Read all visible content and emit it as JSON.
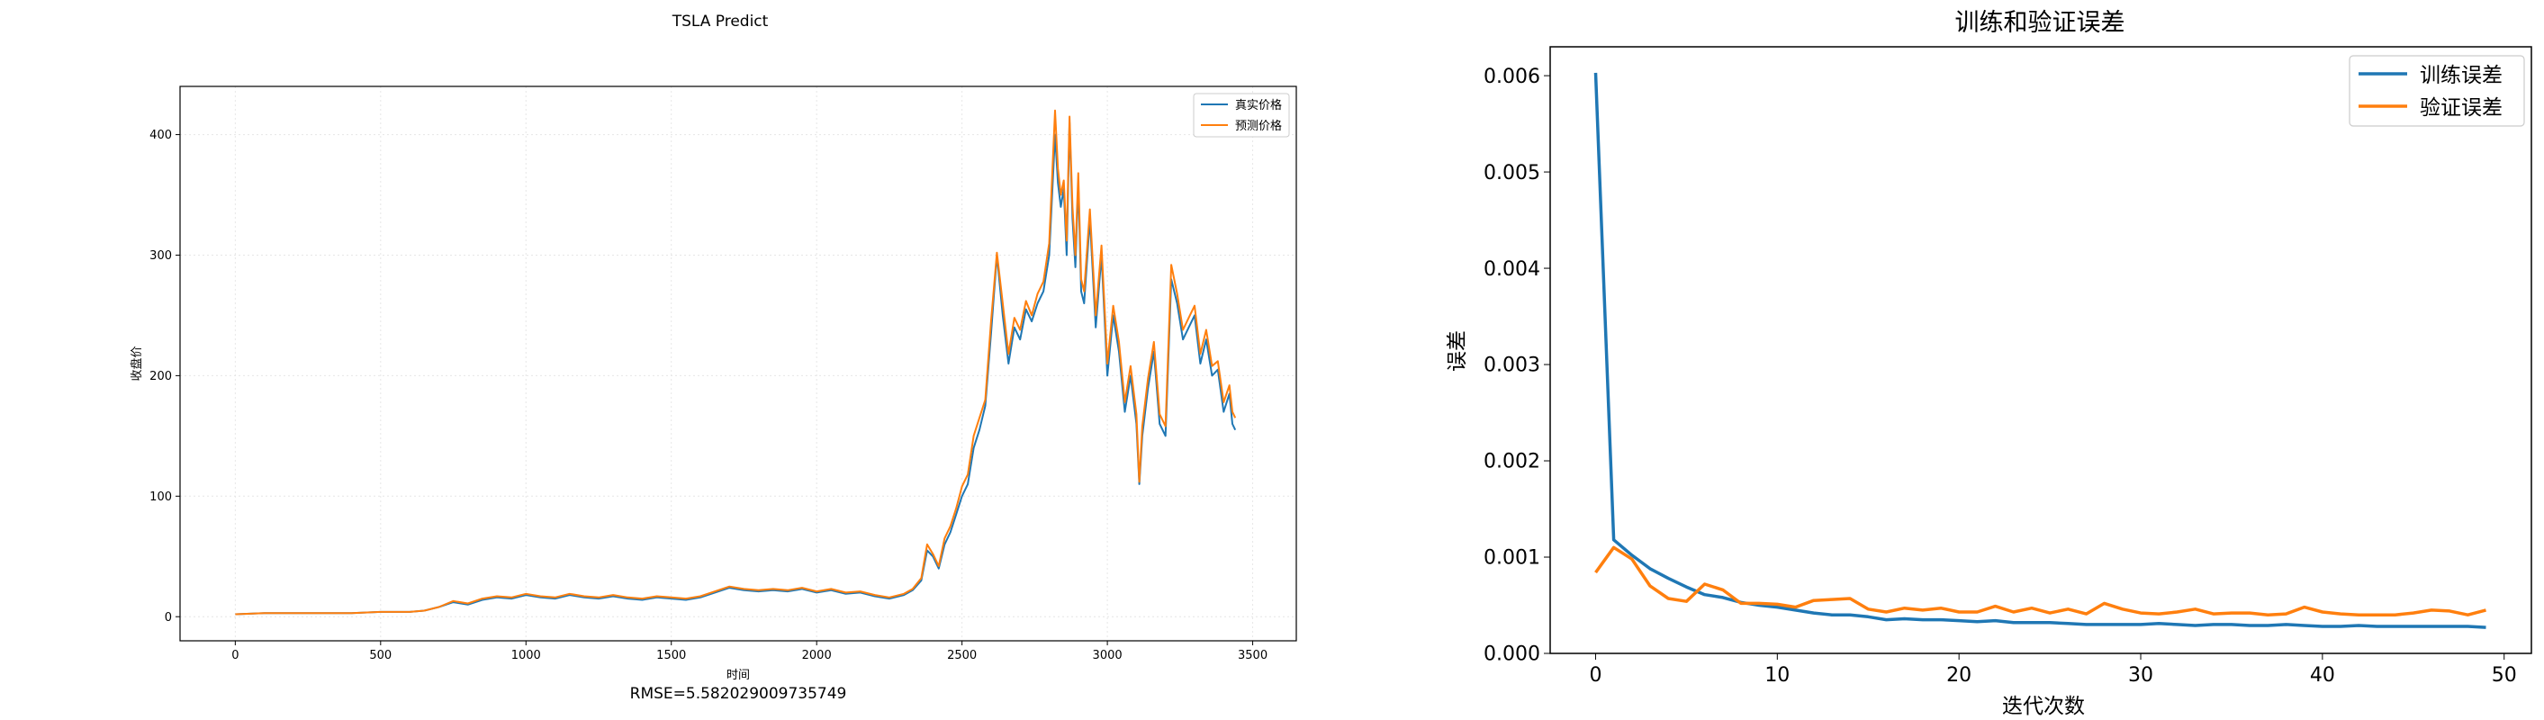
{
  "chart_data": [
    {
      "type": "line",
      "title": "TSLA Predict",
      "xlabel": "时间",
      "ylabel": "收盘价",
      "xlim": [
        -190,
        3650
      ],
      "ylim": [
        -20,
        440
      ],
      "xticks": [
        0,
        500,
        1000,
        1500,
        2000,
        2500,
        3000,
        3500
      ],
      "yticks": [
        0,
        100,
        200,
        300,
        400
      ],
      "legend_position": "top-right",
      "footnote": "RMSE=5.582029009735749",
      "series": [
        {
          "name": "真实价格",
          "color": "#1f77b4",
          "x": [
            0,
            100,
            200,
            300,
            400,
            500,
            600,
            650,
            700,
            750,
            800,
            850,
            900,
            950,
            1000,
            1050,
            1100,
            1150,
            1200,
            1250,
            1300,
            1350,
            1400,
            1450,
            1500,
            1550,
            1600,
            1650,
            1700,
            1750,
            1800,
            1850,
            1900,
            1950,
            2000,
            2050,
            2100,
            2150,
            2200,
            2250,
            2300,
            2330,
            2360,
            2380,
            2400,
            2420,
            2440,
            2460,
            2480,
            2500,
            2520,
            2540,
            2560,
            2580,
            2600,
            2620,
            2640,
            2660,
            2680,
            2700,
            2720,
            2740,
            2760,
            2780,
            2800,
            2820,
            2830,
            2840,
            2850,
            2860,
            2870,
            2880,
            2890,
            2900,
            2910,
            2920,
            2940,
            2960,
            2980,
            3000,
            3020,
            3040,
            3060,
            3080,
            3100,
            3110,
            3120,
            3140,
            3160,
            3180,
            3200,
            3220,
            3240,
            3260,
            3280,
            3300,
            3320,
            3340,
            3360,
            3380,
            3400,
            3420,
            3430,
            3440
          ],
          "values": [
            2,
            3,
            3,
            3,
            3,
            4,
            4,
            5,
            8,
            12,
            10,
            14,
            16,
            15,
            18,
            16,
            15,
            18,
            16,
            15,
            17,
            15,
            14,
            16,
            15,
            14,
            16,
            20,
            24,
            22,
            21,
            22,
            21,
            23,
            20,
            22,
            19,
            20,
            17,
            15,
            18,
            22,
            30,
            55,
            50,
            40,
            60,
            70,
            85,
            100,
            110,
            140,
            155,
            175,
            235,
            300,
            250,
            210,
            240,
            230,
            255,
            245,
            260,
            270,
            300,
            400,
            360,
            340,
            355,
            300,
            410,
            330,
            290,
            360,
            270,
            260,
            330,
            240,
            300,
            200,
            250,
            220,
            170,
            200,
            160,
            110,
            150,
            190,
            220,
            160,
            150,
            280,
            260,
            230,
            240,
            250,
            210,
            230,
            200,
            205,
            170,
            185,
            160,
            155
          ]
        },
        {
          "name": "预测价格",
          "color": "#ff7f0e",
          "x": [
            0,
            100,
            200,
            300,
            400,
            500,
            600,
            650,
            700,
            750,
            800,
            850,
            900,
            950,
            1000,
            1050,
            1100,
            1150,
            1200,
            1250,
            1300,
            1350,
            1400,
            1450,
            1500,
            1550,
            1600,
            1650,
            1700,
            1750,
            1800,
            1850,
            1900,
            1950,
            2000,
            2050,
            2100,
            2150,
            2200,
            2250,
            2300,
            2330,
            2360,
            2380,
            2400,
            2420,
            2440,
            2460,
            2480,
            2500,
            2520,
            2540,
            2560,
            2580,
            2600,
            2620,
            2640,
            2660,
            2680,
            2700,
            2720,
            2740,
            2760,
            2780,
            2800,
            2820,
            2830,
            2840,
            2850,
            2860,
            2870,
            2880,
            2890,
            2900,
            2910,
            2920,
            2940,
            2960,
            2980,
            3000,
            3020,
            3040,
            3060,
            3080,
            3100,
            3110,
            3120,
            3140,
            3160,
            3180,
            3200,
            3220,
            3240,
            3260,
            3280,
            3300,
            3320,
            3340,
            3360,
            3380,
            3400,
            3420,
            3430,
            3440
          ],
          "values": [
            2,
            3,
            3,
            3,
            3,
            4,
            4,
            5,
            8,
            13,
            11,
            15,
            17,
            16,
            19,
            17,
            16,
            19,
            17,
            16,
            18,
            16,
            15,
            17,
            16,
            15,
            17,
            21,
            25,
            23,
            22,
            23,
            22,
            24,
            21,
            23,
            20,
            21,
            18,
            16,
            19,
            23,
            32,
            60,
            52,
            42,
            65,
            75,
            90,
            108,
            118,
            150,
            165,
            180,
            245,
            302,
            260,
            218,
            248,
            238,
            262,
            250,
            268,
            278,
            310,
            420,
            372,
            350,
            362,
            312,
            415,
            340,
            300,
            368,
            280,
            270,
            338,
            250,
            308,
            210,
            258,
            228,
            178,
            208,
            168,
            112,
            158,
            198,
            228,
            168,
            158,
            292,
            268,
            238,
            248,
            258,
            218,
            238,
            208,
            212,
            178,
            192,
            170,
            165
          ]
        }
      ]
    },
    {
      "type": "line",
      "title": "训练和验证误差",
      "xlabel": "迭代次数",
      "ylabel": "误差",
      "xlim": [
        -2.5,
        51.5
      ],
      "ylim": [
        0,
        0.0063
      ],
      "xticks": [
        0,
        10,
        20,
        30,
        40,
        50
      ],
      "yticks": [
        "0.000",
        "0.001",
        "0.002",
        "0.003",
        "0.004",
        "0.005",
        "0.006"
      ],
      "legend_position": "top-right",
      "series": [
        {
          "name": "训练误差",
          "color": "#1f77b4",
          "x": [
            0,
            1,
            2,
            3,
            4,
            5,
            6,
            7,
            8,
            9,
            10,
            11,
            12,
            13,
            14,
            15,
            16,
            17,
            18,
            19,
            20,
            21,
            22,
            23,
            24,
            25,
            26,
            27,
            28,
            29,
            30,
            31,
            32,
            33,
            34,
            35,
            36,
            37,
            38,
            39,
            40,
            41,
            42,
            43,
            44,
            45,
            46,
            47,
            48,
            49
          ],
          "values": [
            0.00603,
            0.00118,
            0.00102,
            0.00088,
            0.00078,
            0.00069,
            0.00061,
            0.00058,
            0.00053,
            0.0005,
            0.00048,
            0.00045,
            0.00042,
            0.0004,
            0.0004,
            0.00038,
            0.00035,
            0.00036,
            0.00035,
            0.00035,
            0.00034,
            0.00033,
            0.00034,
            0.00032,
            0.00032,
            0.00032,
            0.00031,
            0.0003,
            0.0003,
            0.0003,
            0.0003,
            0.00031,
            0.0003,
            0.00029,
            0.0003,
            0.0003,
            0.00029,
            0.00029,
            0.0003,
            0.00029,
            0.00028,
            0.00028,
            0.00029,
            0.00028,
            0.00028,
            0.00028,
            0.00028,
            0.00028,
            0.00028,
            0.00027
          ]
        },
        {
          "name": "验证误差",
          "color": "#ff7f0e",
          "x": [
            0,
            1,
            2,
            3,
            4,
            5,
            6,
            7,
            8,
            9,
            10,
            11,
            12,
            13,
            14,
            15,
            16,
            17,
            18,
            19,
            20,
            21,
            22,
            23,
            24,
            25,
            26,
            27,
            28,
            29,
            30,
            31,
            32,
            33,
            34,
            35,
            36,
            37,
            38,
            39,
            40,
            41,
            42,
            43,
            44,
            45,
            46,
            47,
            48,
            49
          ],
          "values": [
            0.00084,
            0.0011,
            0.00098,
            0.0007,
            0.00057,
            0.00054,
            0.00072,
            0.00066,
            0.00052,
            0.00052,
            0.00051,
            0.00048,
            0.00055,
            0.00056,
            0.00057,
            0.00046,
            0.00043,
            0.00047,
            0.00045,
            0.00047,
            0.00043,
            0.00043,
            0.00049,
            0.00043,
            0.00047,
            0.00042,
            0.00046,
            0.00041,
            0.00052,
            0.00046,
            0.00042,
            0.00041,
            0.00043,
            0.00046,
            0.00041,
            0.00042,
            0.00042,
            0.0004,
            0.00041,
            0.00048,
            0.00043,
            0.00041,
            0.0004,
            0.0004,
            0.0004,
            0.00042,
            0.00045,
            0.00044,
            0.0004,
            0.00045
          ]
        }
      ]
    }
  ]
}
